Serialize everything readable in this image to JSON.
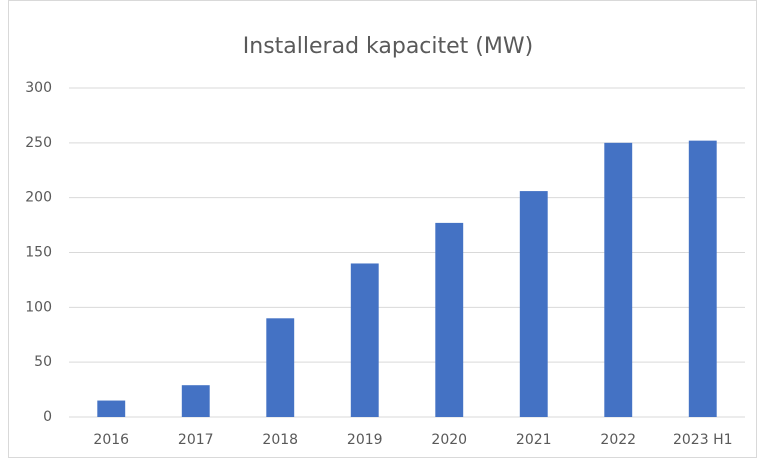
{
  "chart_data": {
    "type": "bar",
    "title": "Installerad kapacitet (MW)",
    "categories": [
      "2016",
      "2017",
      "2018",
      "2019",
      "2020",
      "2021",
      "2022",
      "2023 H1"
    ],
    "values": [
      15,
      29,
      90,
      140,
      177,
      206,
      250,
      252
    ],
    "color": "#4472c4",
    "ylim": [
      0,
      300
    ],
    "yticks": [
      0,
      50,
      100,
      150,
      200,
      250,
      300
    ],
    "grid": true
  }
}
